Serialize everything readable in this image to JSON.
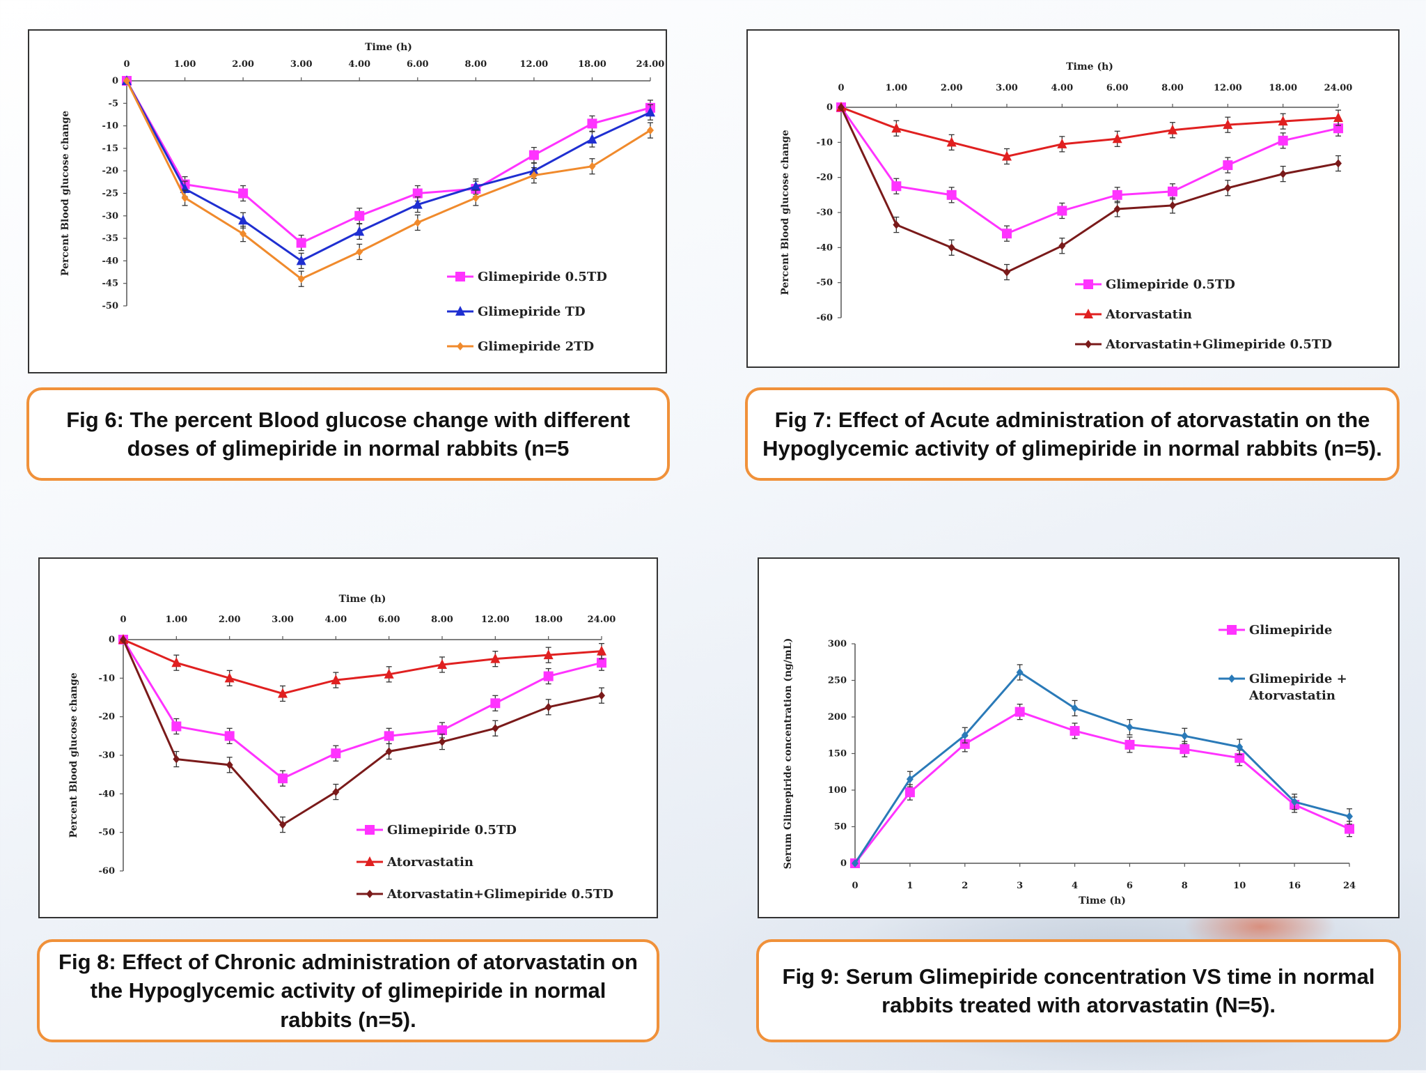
{
  "chart_data": [
    {
      "id": "fig6",
      "type": "line",
      "caption": "Fig 6: The percent Blood glucose change with different doses of glimepiride in normal rabbits (n=5",
      "xlabel": "Time (h)",
      "ylabel": "Percent Blood glucose change",
      "x_position": "top",
      "categories": [
        "0",
        "1.00",
        "2.00",
        "3.00",
        "4.00",
        "6.00",
        "8.00",
        "12.00",
        "18.00",
        "24.00"
      ],
      "yticks": [
        0,
        -5,
        -10,
        -15,
        -20,
        -25,
        -30,
        -35,
        -40,
        -45,
        -50
      ],
      "ylim": [
        -50,
        0
      ],
      "legend_position": "bottom-right",
      "series": [
        {
          "name": "Glimepiride 0.5TD",
          "color": "#ff33ff",
          "marker": "square",
          "values": [
            0,
            -23,
            -25,
            -36,
            -30,
            -25,
            -24,
            -16.5,
            -9.5,
            -6
          ]
        },
        {
          "name": "Glimepiride TD",
          "color": "#1f2fd1",
          "marker": "triangle",
          "values": [
            0,
            -24,
            -31,
            -40,
            -33.5,
            -27.5,
            -23.5,
            -20,
            -13,
            -7
          ]
        },
        {
          "name": "Glimepiride 2TD",
          "color": "#f08a2c",
          "marker": "diamond",
          "values": [
            0,
            -26,
            -34,
            -44,
            -38,
            -31.5,
            -26,
            -21,
            -19,
            -11
          ]
        }
      ]
    },
    {
      "id": "fig7",
      "type": "line",
      "caption": "Fig 7: Effect of Acute administration of atorvastatin on the Hypoglycemic activity  of glimepiride in normal rabbits (n=5).",
      "xlabel": "Time (h)",
      "ylabel": "Percent Blood glucose change",
      "x_position": "top",
      "categories": [
        "0",
        "1.00",
        "2.00",
        "3.00",
        "4.00",
        "6.00",
        "8.00",
        "12.00",
        "18.00",
        "24.00"
      ],
      "yticks": [
        0,
        -10,
        -20,
        -30,
        -40,
        -50,
        -60
      ],
      "ylim": [
        -60,
        0
      ],
      "legend_position": "bottom-right",
      "series": [
        {
          "name": "Glimepiride 0.5TD",
          "color": "#ff33ff",
          "marker": "square",
          "values": [
            0,
            -22.5,
            -25,
            -36,
            -29.5,
            -25,
            -24,
            -16.5,
            -9.5,
            -6
          ]
        },
        {
          "name": "Atorvastatin",
          "color": "#e02020",
          "marker": "triangle",
          "values": [
            0,
            -6,
            -10,
            -14,
            -10.5,
            -9,
            -6.5,
            -5,
            -4,
            -3
          ]
        },
        {
          "name": "Atorvastatin+Glimepiride 0.5TD",
          "color": "#7a1a1a",
          "marker": "diamond",
          "values": [
            0,
            -33.5,
            -40,
            -47,
            -39.5,
            -29,
            -28,
            -23,
            -19,
            -16
          ]
        }
      ]
    },
    {
      "id": "fig8",
      "type": "line",
      "caption": "Fig 8: Effect of Chronic administration of atorvastatin on the Hypoglycemic activity  of glimepiride in normal rabbits (n=5).",
      "xlabel": "Time (h)",
      "ylabel": "Percent Blood glucose change",
      "x_position": "top",
      "categories": [
        "0",
        "1.00",
        "2.00",
        "3.00",
        "4.00",
        "6.00",
        "8.00",
        "12.00",
        "18.00",
        "24.00"
      ],
      "yticks": [
        0,
        -10,
        -20,
        -30,
        -40,
        -50,
        -60
      ],
      "ylim": [
        -60,
        0
      ],
      "legend_position": "bottom-right",
      "series": [
        {
          "name": "Glimepiride 0.5TD",
          "color": "#ff33ff",
          "marker": "square",
          "values": [
            0,
            -22.5,
            -25,
            -36,
            -29.5,
            -25,
            -23.5,
            -16.5,
            -9.5,
            -6
          ]
        },
        {
          "name": "Atorvastatin",
          "color": "#e02020",
          "marker": "triangle",
          "values": [
            0,
            -6,
            -10,
            -14,
            -10.5,
            -9,
            -6.5,
            -5,
            -4,
            -3
          ]
        },
        {
          "name": "Atorvastatin+Glimepiride 0.5TD",
          "color": "#7a1a1a",
          "marker": "diamond",
          "values": [
            0,
            -31,
            -32.5,
            -48,
            -39.5,
            -29,
            -26.5,
            -23,
            -17.5,
            -14.5
          ]
        }
      ]
    },
    {
      "id": "fig9",
      "type": "line",
      "caption": "Fig 9: Serum Glimepiride concentration VS time in normal rabbits treated with atorvastatin (N=5).",
      "xlabel": "Time (h)",
      "ylabel": "Serum Glimepiride concentration (ng/mL)",
      "x_position": "bottom",
      "categories": [
        "0",
        "1",
        "2",
        "3",
        "4",
        "6",
        "8",
        "10",
        "16",
        "24"
      ],
      "yticks": [
        0,
        50,
        100,
        150,
        200,
        250,
        300
      ],
      "ylim": [
        0,
        300
      ],
      "legend_position": "top-right",
      "series": [
        {
          "name": "Glimepiride",
          "color": "#ff33ff",
          "marker": "square",
          "values": [
            0,
            97,
            163,
            207,
            181,
            162,
            156,
            144,
            80,
            47
          ]
        },
        {
          "name": "Glimepiride + Atorvastatin",
          "color": "#2a7ab8",
          "marker": "diamond",
          "values": [
            0,
            115,
            175,
            261,
            212,
            186,
            174,
            159,
            84,
            64
          ]
        }
      ]
    }
  ]
}
